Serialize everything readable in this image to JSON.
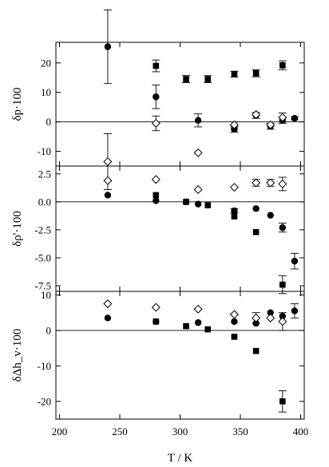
{
  "chart_data": {
    "type": "scatter",
    "xlabel": "T / K",
    "x_ticks": [
      200,
      250,
      300,
      350,
      400
    ],
    "xlim": [
      197,
      403
    ],
    "panels": [
      {
        "ylabel": "δp·100",
        "ylim": [
          -15,
          27
        ],
        "y_ticks": [
          -10,
          0,
          10,
          20
        ],
        "y_tick_labels": [
          "-10",
          "0",
          "10",
          "20"
        ],
        "series": [
          {
            "marker": "circle-filled",
            "points": [
              {
                "x": 240,
                "y": 25.5,
                "err": 12.5
              },
              {
                "x": 280,
                "y": 8.5,
                "err": 4
              },
              {
                "x": 315,
                "y": 0.5,
                "err": 2.2
              },
              {
                "x": 345,
                "y": -2.5,
                "err": 1
              },
              {
                "x": 363,
                "y": 2.2,
                "err": 1
              },
              {
                "x": 375,
                "y": -1.5,
                "err": 1
              },
              {
                "x": 385,
                "y": 0.5,
                "err": 1
              },
              {
                "x": 395,
                "y": 1.2,
                "err": 0.5
              }
            ]
          },
          {
            "marker": "square-filled",
            "points": [
              {
                "x": 280,
                "y": 19,
                "err": 2
              },
              {
                "x": 305,
                "y": 14.5,
                "err": 1.2
              },
              {
                "x": 323,
                "y": 14.5,
                "err": 1.2
              },
              {
                "x": 345,
                "y": 16.2,
                "err": 1
              },
              {
                "x": 363,
                "y": 16.5,
                "err": 1.2
              },
              {
                "x": 385,
                "y": 19.2,
                "err": 1.5
              }
            ]
          },
          {
            "marker": "diamond-open",
            "points": [
              {
                "x": 240,
                "y": -13.5,
                "err": 9.5
              },
              {
                "x": 280,
                "y": -0.5,
                "err": 2.5
              },
              {
                "x": 315,
                "y": -10.5,
                "err": 0
              },
              {
                "x": 345,
                "y": -1,
                "err": 1
              },
              {
                "x": 363,
                "y": 2.5,
                "err": 0
              },
              {
                "x": 375,
                "y": -1,
                "err": 0
              },
              {
                "x": 385,
                "y": 1.5,
                "err": 1.5
              }
            ]
          }
        ]
      },
      {
        "ylabel": "δρ'·100",
        "ylim": [
          -8,
          3.2
        ],
        "y_ticks": [
          -7.5,
          -5.0,
          -2.5,
          0.0,
          2.5
        ],
        "y_tick_labels": [
          "-7.5",
          "-5.0",
          "-2.5",
          "0.0",
          "2.5"
        ],
        "series": [
          {
            "marker": "circle-filled",
            "points": [
              {
                "x": 240,
                "y": 0.6,
                "err": 0
              },
              {
                "x": 280,
                "y": 0.1,
                "err": 0
              },
              {
                "x": 305,
                "y": 0.0,
                "err": 0
              },
              {
                "x": 315,
                "y": -0.2,
                "err": 0
              },
              {
                "x": 345,
                "y": -0.8,
                "err": 0.2
              },
              {
                "x": 363,
                "y": -0.6,
                "err": 0
              },
              {
                "x": 375,
                "y": -1.2,
                "err": 0
              },
              {
                "x": 385,
                "y": -2.3,
                "err": 0.4
              },
              {
                "x": 395,
                "y": -5.3,
                "err": 0.7
              }
            ]
          },
          {
            "marker": "square-filled",
            "points": [
              {
                "x": 280,
                "y": 0.6,
                "err": 0
              },
              {
                "x": 305,
                "y": 0.0,
                "err": 0
              },
              {
                "x": 323,
                "y": -0.3,
                "err": 0
              },
              {
                "x": 345,
                "y": -1.3,
                "err": 0
              },
              {
                "x": 363,
                "y": -2.7,
                "err": 0
              },
              {
                "x": 385,
                "y": -7.4,
                "err": 0.8
              }
            ]
          },
          {
            "marker": "diamond-open",
            "points": [
              {
                "x": 240,
                "y": 1.9,
                "err": 0
              },
              {
                "x": 280,
                "y": 2.0,
                "err": 0
              },
              {
                "x": 315,
                "y": 1.1,
                "err": 0
              },
              {
                "x": 345,
                "y": 1.3,
                "err": 0
              },
              {
                "x": 363,
                "y": 1.7,
                "err": 0.3
              },
              {
                "x": 375,
                "y": 1.7,
                "err": 0.3
              },
              {
                "x": 385,
                "y": 1.6,
                "err": 0.6
              }
            ]
          }
        ]
      },
      {
        "ylabel": "δΔh_v·100",
        "ylim": [
          -25,
          11
        ],
        "y_ticks": [
          -20,
          -10,
          0,
          10
        ],
        "y_tick_labels": [
          "-20",
          "-10",
          "0",
          "10"
        ],
        "series": [
          {
            "marker": "circle-filled",
            "points": [
              {
                "x": 240,
                "y": 3.5,
                "err": 0
              },
              {
                "x": 280,
                "y": 2.5,
                "err": 0
              },
              {
                "x": 315,
                "y": 2.2,
                "err": 0
              },
              {
                "x": 345,
                "y": 2.5,
                "err": 0
              },
              {
                "x": 363,
                "y": 2.0,
                "err": 0
              },
              {
                "x": 375,
                "y": 5.0,
                "err": 0
              },
              {
                "x": 385,
                "y": 4.0,
                "err": 0
              },
              {
                "x": 395,
                "y": 5.5,
                "err": 2
              }
            ]
          },
          {
            "marker": "square-filled",
            "points": [
              {
                "x": 280,
                "y": 2.5,
                "err": 0
              },
              {
                "x": 305,
                "y": 1.2,
                "err": 0
              },
              {
                "x": 323,
                "y": 0.3,
                "err": 0
              },
              {
                "x": 345,
                "y": -1.8,
                "err": 0
              },
              {
                "x": 363,
                "y": -5.8,
                "err": 0
              },
              {
                "x": 385,
                "y": -20.0,
                "err": 3
              }
            ]
          },
          {
            "marker": "diamond-open",
            "points": [
              {
                "x": 240,
                "y": 7.5,
                "err": 0
              },
              {
                "x": 280,
                "y": 6.5,
                "err": 0
              },
              {
                "x": 315,
                "y": 6.0,
                "err": 0
              },
              {
                "x": 345,
                "y": 4.5,
                "err": 0
              },
              {
                "x": 363,
                "y": 3.5,
                "err": 1.5
              },
              {
                "x": 375,
                "y": 3.5,
                "err": 0
              },
              {
                "x": 385,
                "y": 2.5,
                "err": 2.5
              }
            ]
          }
        ]
      }
    ]
  }
}
